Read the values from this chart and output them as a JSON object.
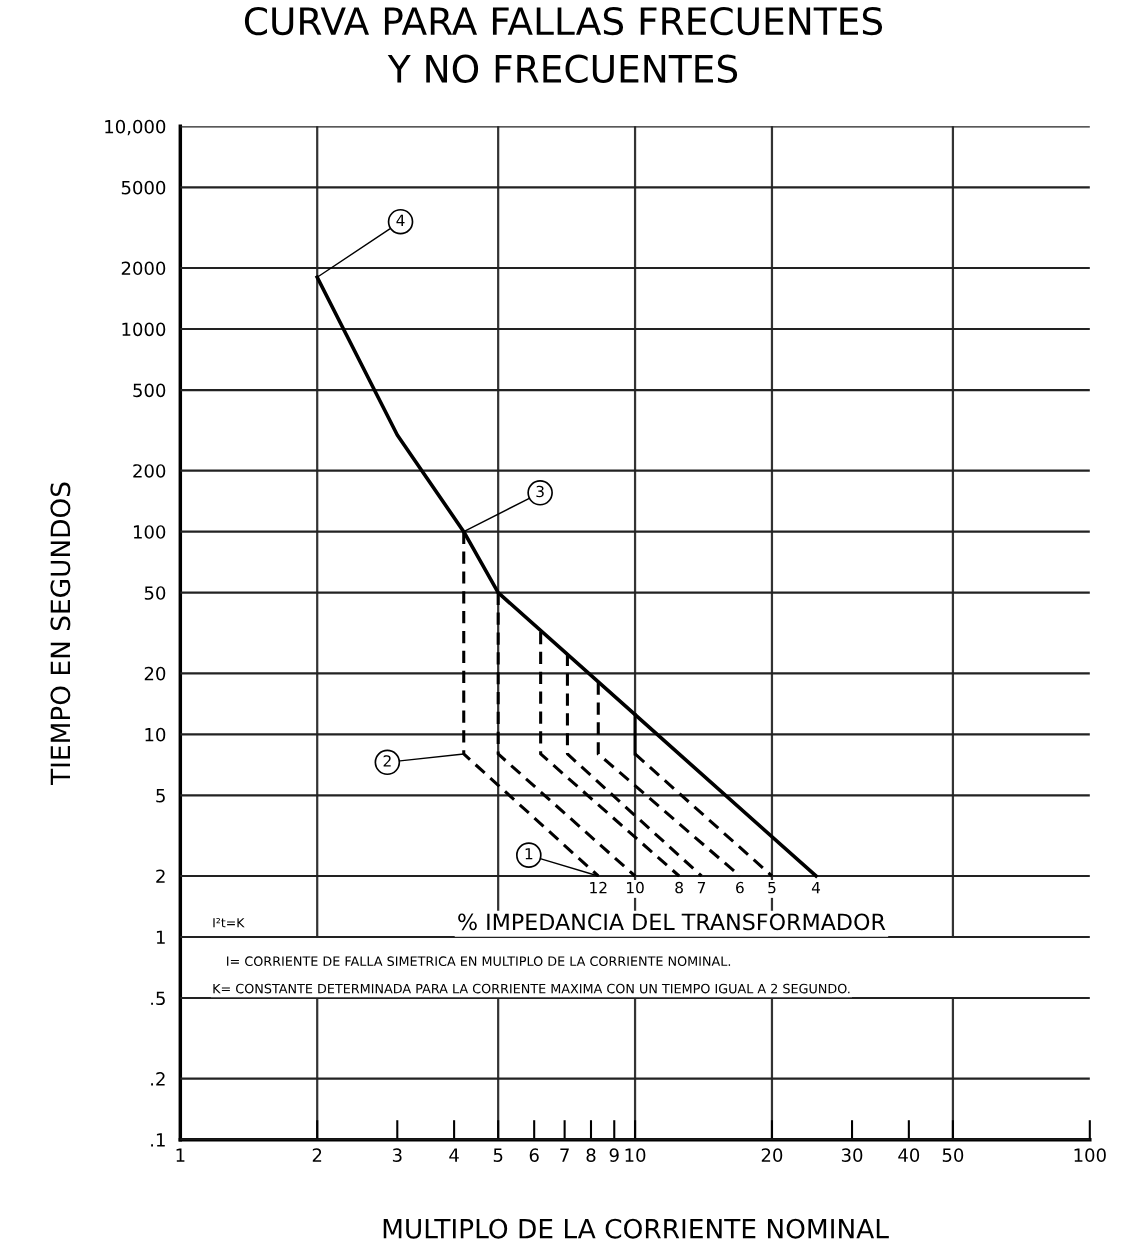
{
  "chart_data": {
    "type": "line",
    "title": "CURVA PARA FALLAS FRECUENTES\nY NO FRECUENTES",
    "xlabel": "MULTIPLO DE LA CORRIENTE NOMINAL",
    "ylabel": "TIEMPO EN SEGUNDOS",
    "log": "xy",
    "xlim": [
      1,
      100
    ],
    "ylim": [
      0.1,
      10000
    ],
    "xticks": [
      1,
      2,
      3,
      4,
      5,
      6,
      7,
      8,
      9,
      10,
      20,
      30,
      40,
      50,
      100
    ],
    "yticks": [
      {
        "value": 0.1,
        "label": ".1"
      },
      {
        "value": 0.2,
        "label": ".2"
      },
      {
        "value": 0.5,
        "label": ".5"
      },
      1,
      2,
      5,
      10,
      20,
      50,
      100,
      200,
      500,
      1000,
      2000,
      5000,
      {
        "value": 10000,
        "label": "10,000"
      }
    ],
    "grid": "y",
    "legend": false,
    "series": [
      {
        "color": "#000000",
        "line_style": "solid",
        "x": [
          2,
          3,
          4.2,
          5,
          10,
          25
        ],
        "values": [
          1800,
          300,
          100,
          50,
          12.5,
          2
        ]
      },
      {
        "color": "#000000",
        "line_style": "dashed",
        "x": [
          4.2,
          4.2,
          8.3
        ],
        "values": [
          100,
          8,
          2
        ]
      },
      {
        "color": "#000000",
        "line_style": "dashed",
        "x": [
          5,
          5,
          10
        ],
        "values": [
          50,
          8,
          2
        ]
      },
      {
        "color": "#000000",
        "line_style": "dashed",
        "x": [
          6.2,
          6.2,
          12.5
        ],
        "values": [
          32,
          8,
          2
        ]
      },
      {
        "color": "#000000",
        "line_style": "dashed",
        "x": [
          7.1,
          7.1,
          14
        ],
        "values": [
          25,
          8,
          2
        ]
      },
      {
        "color": "#000000",
        "line_style": "dashed",
        "x": [
          8.3,
          8.3,
          17
        ],
        "values": [
          18,
          8,
          2
        ]
      },
      {
        "color": "#000000",
        "line_style": "solid",
        "x": [
          10,
          10
        ],
        "values": [
          12.5,
          8
        ]
      },
      {
        "color": "#000000",
        "line_style": "dashed",
        "x": [
          10,
          20
        ],
        "values": [
          8,
          2
        ]
      }
    ],
    "ref_lines": [
      {
        "axis": "x",
        "value": 2
      },
      {
        "axis": "x",
        "value": 5
      },
      {
        "axis": "x",
        "value": 10
      },
      {
        "axis": "x",
        "value": 20
      },
      {
        "axis": "x",
        "value": 50
      }
    ],
    "bands": [
      {
        "axis": "y",
        "from": 0.5,
        "to": 1,
        "color": "#ffffff"
      }
    ],
    "annotations": [
      {
        "text": "4",
        "x": 2,
        "y": 1800
      },
      {
        "text": "3",
        "x": 4.2,
        "y": 100
      },
      {
        "text": "2",
        "x": 4.2,
        "y": 8
      },
      {
        "text": "1",
        "x": 8.3,
        "y": 2
      },
      {
        "text": "12",
        "x": 8.3,
        "y": 2
      },
      {
        "text": "10",
        "x": 10,
        "y": 2
      },
      {
        "text": "8",
        "x": 12.5,
        "y": 2
      },
      {
        "text": "7",
        "x": 14,
        "y": 2
      },
      {
        "text": "6",
        "x": 17,
        "y": 2
      },
      {
        "text": "5",
        "x": 20,
        "y": 2
      },
      {
        "text": "4",
        "x": 25,
        "y": 2
      },
      "I²t=K",
      "% IMPEDANCIA DEL TRANSFORMADOR",
      "I= CORRIENTE DE FALLA SIMETRICA EN MULTIPLO DE LA CORRIENTE NOMINAL.",
      "K= CONSTANTE DETERMINADA PARA LA CORRIENTE MAXIMA CON UN TIEMPO IGUAL A 2 SEGUNDO."
    ]
  }
}
